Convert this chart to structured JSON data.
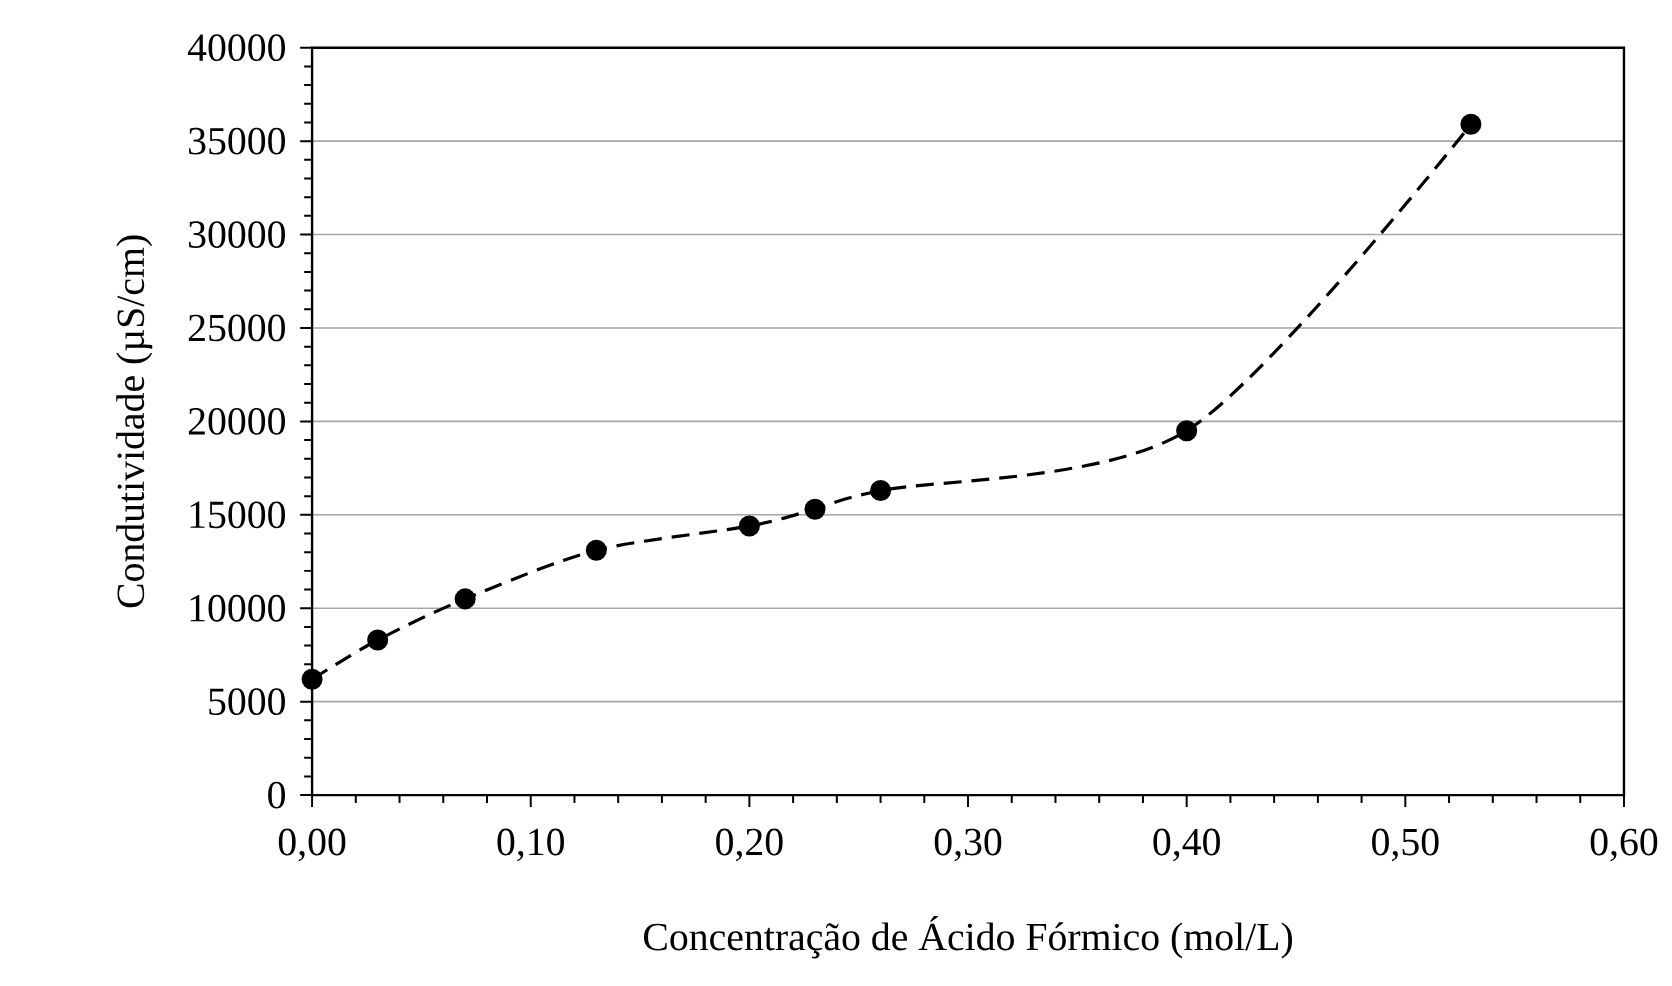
{
  "chart_data": {
    "type": "line",
    "xlabel": "Concentração de Ácido Fórmico (mol/L)",
    "ylabel": "Condutividade (µS/cm)",
    "x": [
      0,
      0.03,
      0.07,
      0.13,
      0.2,
      0.23,
      0.26,
      0.4,
      0.53
    ],
    "series": [
      {
        "color": "#000000",
        "values": [
          6200,
          8300,
          10500,
          13100,
          14400,
          15300,
          16300,
          19500,
          35900
        ]
      }
    ],
    "xlim": [
      0,
      0.6
    ],
    "xticks": [
      {
        "value": 0,
        "label": "0,00"
      },
      {
        "value": 0.1,
        "label": "0,10"
      },
      {
        "value": 0.2,
        "label": "0,20"
      },
      {
        "value": 0.3,
        "label": "0,30"
      },
      {
        "value": 0.4,
        "label": "0,40"
      },
      {
        "value": 0.5,
        "label": "0,50"
      },
      {
        "value": 0.6,
        "label": "0,60"
      }
    ],
    "ylim": [
      0,
      40000
    ],
    "yticks": [
      0,
      5000,
      10000,
      15000,
      20000,
      25000,
      30000,
      35000,
      40000
    ],
    "grid": "y",
    "marker": "circle",
    "line_style": "dashed"
  }
}
